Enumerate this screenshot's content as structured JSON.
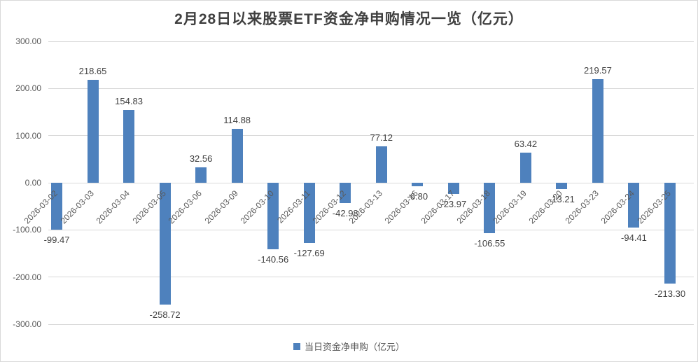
{
  "chart_data": {
    "type": "bar",
    "title": "2月28日以来股票ETF资金净申购情况一览（亿元）",
    "categories": [
      "2026-03-02",
      "2026-03-03",
      "2026-03-04",
      "2026-03-05",
      "2026-03-06",
      "2026-03-09",
      "2026-03-10",
      "2026-03-11",
      "2026-03-12",
      "2026-03-13",
      "2026-03-16",
      "2026-03-17",
      "2026-03-18",
      "2026-03-19",
      "2026-03-20",
      "2026-03-23",
      "2026-03-24",
      "2026-03-25"
    ],
    "series": [
      {
        "name": "当日资金净申购（亿元）",
        "values": [
          -99.47,
          218.65,
          154.83,
          -258.72,
          32.56,
          114.88,
          -140.56,
          -127.69,
          -42.98,
          77.12,
          -6.8,
          -23.97,
          -106.55,
          63.42,
          -13.21,
          219.57,
          -94.41,
          -213.3
        ]
      }
    ],
    "xlabel": "",
    "ylabel": "",
    "ylim": [
      -300,
      300
    ],
    "ytick_step": 100,
    "ytick_labels": [
      "300.00",
      "200.00",
      "100.00",
      "0.00",
      "-100.00",
      "-200.00",
      "-300.00"
    ],
    "grid": true,
    "legend_position": "bottom",
    "value_labels": "outside-end"
  },
  "legend": {
    "label": "当日资金净申购（亿元）"
  },
  "colors": {
    "bar": "#4e81bd",
    "title_text": "#404040",
    "value_label_text": "#404040",
    "axis_text": "#595959",
    "gridline": "#d9d9d9",
    "border": "#d9d9d9",
    "background": "#ffffff"
  }
}
